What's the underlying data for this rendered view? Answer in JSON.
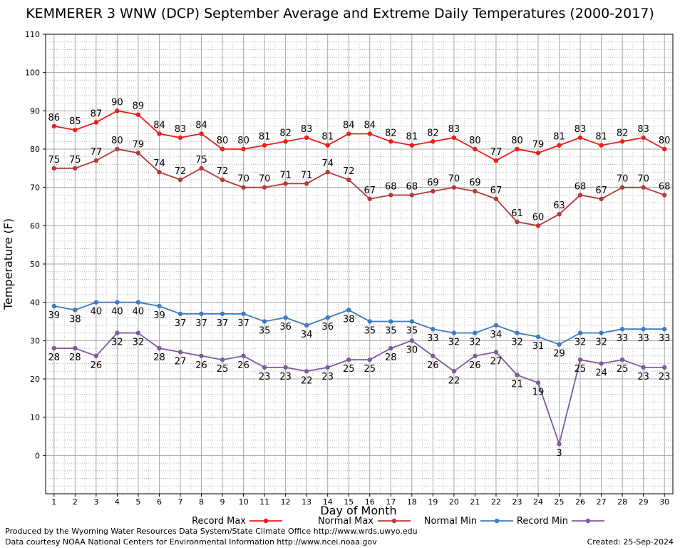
{
  "chart_data": {
    "type": "line",
    "title": "KEMMERER 3 WNW (DCP) September Average and Extreme Daily Temperatures (2000-2017)",
    "xlabel": "Day of Month",
    "ylabel": "Temperature (F)",
    "ylim": [
      -10,
      110
    ],
    "xlim": [
      0.6,
      30.4
    ],
    "y_ticks": [
      0,
      10,
      20,
      30,
      40,
      50,
      60,
      70,
      80,
      90,
      100,
      110
    ],
    "grid": true,
    "legend_position": "bottom",
    "x": [
      1,
      2,
      3,
      4,
      5,
      6,
      7,
      8,
      9,
      10,
      11,
      12,
      13,
      14,
      15,
      16,
      17,
      18,
      19,
      20,
      21,
      22,
      23,
      24,
      25,
      26,
      27,
      28,
      29,
      30
    ],
    "series": [
      {
        "name": "Record Max",
        "color": "#ee1c1c",
        "label_pos": "above",
        "values": [
          86,
          85,
          87,
          90,
          89,
          84,
          83,
          84,
          80,
          80,
          81,
          82,
          83,
          81,
          84,
          84,
          82,
          81,
          82,
          83,
          80,
          77,
          80,
          79,
          81,
          83,
          81,
          82,
          83,
          80
        ]
      },
      {
        "name": "Normal Max",
        "color": "#b83838",
        "label_pos": "above",
        "values": [
          75,
          75,
          77,
          80,
          79,
          74,
          72,
          75,
          72,
          70,
          70,
          71,
          71,
          74,
          72,
          67,
          68,
          68,
          69,
          70,
          69,
          67,
          61,
          60,
          63,
          68,
          67,
          70,
          70,
          68
        ]
      },
      {
        "name": "Normal Min",
        "color": "#3f7bbf",
        "label_pos": "below",
        "values": [
          39,
          38,
          40,
          40,
          40,
          39,
          37,
          37,
          37,
          37,
          35,
          36,
          34,
          36,
          38,
          35,
          35,
          35,
          33,
          32,
          32,
          34,
          32,
          31,
          29,
          32,
          32,
          33,
          33,
          33
        ]
      },
      {
        "name": "Record Min",
        "color": "#7d5b9e",
        "label_pos": "below",
        "values": [
          28,
          28,
          26,
          32,
          32,
          28,
          27,
          26,
          25,
          26,
          23,
          23,
          22,
          23,
          25,
          25,
          28,
          30,
          26,
          22,
          26,
          27,
          21,
          19,
          3,
          25,
          24,
          25,
          23,
          23
        ]
      }
    ]
  },
  "footer": {
    "produced_by": "Produced by the Wyoming Water Resources Data System/State Climate Office http://www.wrds.uwyo.edu",
    "data_courtesy": "Data courtesy NOAA National Centers for Environmental Information http://www.ncei.noaa.gov",
    "created": "Created:  25-Sep-2024"
  }
}
